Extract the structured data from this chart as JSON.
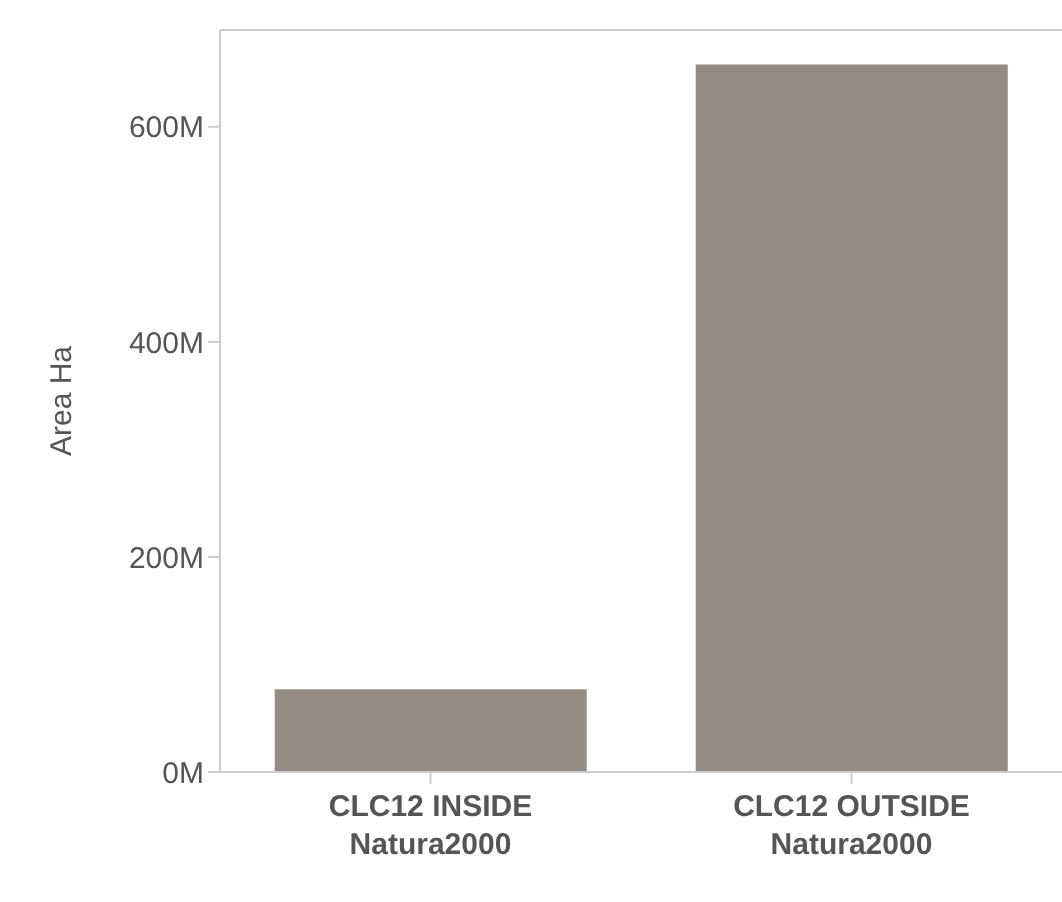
{
  "chart_data": {
    "type": "bar",
    "ylabel": "Area Ha",
    "categories": [
      "CLC12 INSIDE Natura2000",
      "CLC12 OUTSIDE Natura2000"
    ],
    "values": [
      77000000,
      658000000
    ],
    "color": "#948c80",
    "ylim": [
      0,
      690000000
    ],
    "yticks": [
      {
        "value": 0,
        "label": "0M"
      },
      {
        "value": 200000000,
        "label": "200M"
      },
      {
        "value": 400000000,
        "label": "400M"
      },
      {
        "value": 600000000,
        "label": "600M"
      }
    ],
    "grid": false
  }
}
